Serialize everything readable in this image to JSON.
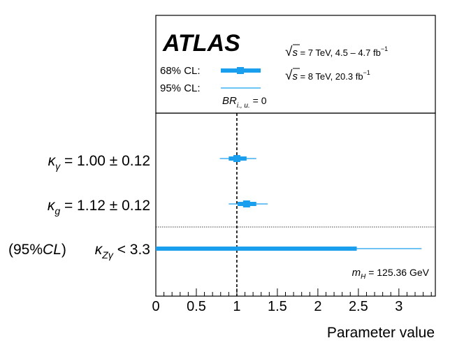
{
  "chart_data": {
    "type": "forest",
    "brand": "ATLAS",
    "legend": {
      "cl68_label": "68% CL:",
      "cl95_label": "95% CL:",
      "energy_7": {
        "sqrt": "√",
        "s": "s",
        "rest": " = 7 TeV, 4.5 – 4.7 fb",
        "sup": "−1"
      },
      "energy_8": {
        "sqrt": "√",
        "s": "s",
        "rest": " = 8 TeV, 20.3 fb",
        "sup": "−1"
      },
      "br": {
        "main": "BR",
        "sub": "i., u.",
        "rest": " = 0"
      }
    },
    "annotation": {
      "m": "m",
      "sub": "H",
      "rest": " = 125.36 GeV"
    },
    "xlabel": "Parameter value",
    "xlim": [
      0,
      3.45
    ],
    "xticks": [
      0,
      0.5,
      1,
      1.5,
      2,
      2.5,
      3
    ],
    "xtick_labels": [
      "0",
      "0.5",
      "1",
      "1.5",
      "2",
      "2.5",
      "3"
    ],
    "reference_line": 1,
    "color": "#1a9fef",
    "rows": [
      {
        "symbol": "κ",
        "sub": "γ",
        "text": " = 1.00 ± 0.12",
        "prefix": "",
        "central": 1.0,
        "cl68": [
          0.9,
          1.12
        ],
        "cl95": [
          0.79,
          1.24
        ]
      },
      {
        "symbol": "κ",
        "sub": "g",
        "text": " = 1.12 ± 0.12",
        "prefix": "",
        "central": 1.12,
        "cl68": [
          1.01,
          1.24
        ],
        "cl95": [
          0.9,
          1.38
        ]
      },
      {
        "symbol": "κ",
        "sub": "Zγ",
        "text": " < 3.3",
        "prefix": "(95%",
        "prefix_cl": "CL",
        "prefix_close": ")",
        "central": null,
        "cl68": [
          0,
          2.48
        ],
        "cl95": [
          0,
          3.28
        ]
      }
    ]
  }
}
